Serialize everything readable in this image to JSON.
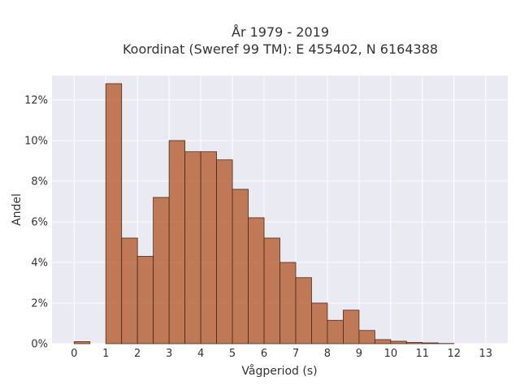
{
  "chart_data": {
    "type": "bar",
    "title_lines": [
      "År 1979 - 2019",
      "Koordinat (Sweref 99 TM): E 455402, N 6164388"
    ],
    "xlabel": "Vågperiod (s)",
    "ylabel": "Andel",
    "xlim": [
      -0.7,
      13.7
    ],
    "ylim": [
      0,
      13.2
    ],
    "x_ticks": [
      0,
      1,
      2,
      3,
      4,
      5,
      6,
      7,
      8,
      9,
      10,
      11,
      12,
      13
    ],
    "x_tick_labels": [
      "0",
      "1",
      "2",
      "3",
      "4",
      "5",
      "6",
      "7",
      "8",
      "9",
      "10",
      "11",
      "12",
      "13"
    ],
    "y_ticks": [
      0,
      2,
      4,
      6,
      8,
      10,
      12
    ],
    "y_tick_labels": [
      "0%",
      "2%",
      "4%",
      "6%",
      "8%",
      "10%",
      "12%"
    ],
    "bin_width": 0.5,
    "bins": [
      {
        "x": 0.0,
        "value": 0.1
      },
      {
        "x": 0.5,
        "value": 0
      },
      {
        "x": 1.0,
        "value": 12.8
      },
      {
        "x": 1.5,
        "value": 5.2
      },
      {
        "x": 2.0,
        "value": 4.3
      },
      {
        "x": 2.5,
        "value": 7.2
      },
      {
        "x": 3.0,
        "value": 10.0
      },
      {
        "x": 3.5,
        "value": 9.45
      },
      {
        "x": 4.0,
        "value": 9.45
      },
      {
        "x": 4.5,
        "value": 9.05
      },
      {
        "x": 5.0,
        "value": 7.6
      },
      {
        "x": 5.5,
        "value": 6.2
      },
      {
        "x": 6.0,
        "value": 5.2
      },
      {
        "x": 6.5,
        "value": 4.0
      },
      {
        "x": 7.0,
        "value": 3.25
      },
      {
        "x": 7.5,
        "value": 2.0
      },
      {
        "x": 8.0,
        "value": 1.15
      },
      {
        "x": 8.5,
        "value": 1.65
      },
      {
        "x": 9.0,
        "value": 0.65
      },
      {
        "x": 9.5,
        "value": 0.2
      },
      {
        "x": 10.0,
        "value": 0.12
      },
      {
        "x": 10.5,
        "value": 0.06
      },
      {
        "x": 11.0,
        "value": 0.04
      },
      {
        "x": 11.5,
        "value": 0.01
      }
    ],
    "colors": {
      "bar_fill": "#b8653b",
      "bar_edge": "#4a2a17",
      "plot_background": "#eaeaf2",
      "grid": "#ffffff"
    },
    "grid": true
  }
}
